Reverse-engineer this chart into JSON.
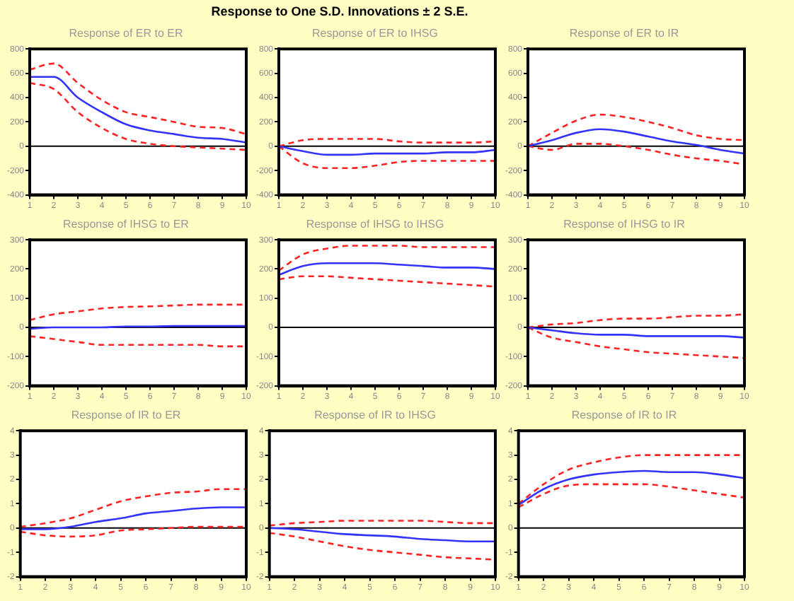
{
  "chart_data": [
    {
      "type": "line",
      "title": "Response of ER to ER",
      "annotations": [
        "Response to One S.D. Innovations ± 2 S.E."
      ],
      "categories": [
        "1",
        "2",
        "3",
        "4",
        "5",
        "6",
        "7",
        "8",
        "9",
        "10"
      ],
      "ylim": [
        -400,
        800
      ],
      "yticks": [
        -400,
        -200,
        0,
        200,
        400,
        600,
        800
      ],
      "ref_lines": [
        {
          "axis": "y",
          "value": 0,
          "color": "#000000"
        }
      ],
      "series": [
        {
          "color": "#3333ff",
          "line_style": "solid",
          "values": [
            570,
            570,
            400,
            280,
            180,
            130,
            100,
            70,
            60,
            30
          ]
        },
        {
          "color": "#ff2222",
          "line_style": "dashed",
          "values": [
            630,
            680,
            520,
            380,
            280,
            240,
            200,
            160,
            150,
            100
          ]
        },
        {
          "color": "#ff2222",
          "line_style": "dashed",
          "values": [
            520,
            470,
            280,
            150,
            60,
            20,
            0,
            -10,
            -20,
            -30
          ]
        }
      ]
    },
    {
      "type": "line",
      "title": "Response of ER to IHSG",
      "categories": [
        "1",
        "2",
        "3",
        "4",
        "5",
        "6",
        "7",
        "8",
        "9",
        "10"
      ],
      "ylim": [
        -400,
        800
      ],
      "yticks": [
        -400,
        -200,
        0,
        200,
        400,
        600,
        800
      ],
      "ref_lines": [
        {
          "axis": "y",
          "value": 0,
          "color": "#000000"
        }
      ],
      "series": [
        {
          "color": "#3333ff",
          "line_style": "solid",
          "values": [
            0,
            -40,
            -70,
            -70,
            -60,
            -60,
            -60,
            -50,
            -50,
            -30
          ]
        },
        {
          "color": "#ff2222",
          "line_style": "dashed",
          "values": [
            0,
            50,
            60,
            60,
            60,
            40,
            30,
            30,
            30,
            40
          ]
        },
        {
          "color": "#ff2222",
          "line_style": "dashed",
          "values": [
            0,
            -140,
            -180,
            -180,
            -160,
            -130,
            -120,
            -120,
            -120,
            -120
          ]
        }
      ]
    },
    {
      "type": "line",
      "title": "Response of ER to IR",
      "categories": [
        "1",
        "2",
        "3",
        "4",
        "5",
        "6",
        "7",
        "8",
        "9",
        "10"
      ],
      "ylim": [
        -400,
        800
      ],
      "yticks": [
        -400,
        -200,
        0,
        200,
        400,
        600,
        800
      ],
      "ref_lines": [
        {
          "axis": "y",
          "value": 0,
          "color": "#000000"
        }
      ],
      "series": [
        {
          "color": "#3333ff",
          "line_style": "solid",
          "values": [
            0,
            50,
            110,
            140,
            120,
            80,
            40,
            10,
            -30,
            -60
          ]
        },
        {
          "color": "#ff2222",
          "line_style": "dashed",
          "values": [
            0,
            110,
            210,
            260,
            240,
            200,
            150,
            90,
            60,
            50
          ]
        },
        {
          "color": "#ff2222",
          "line_style": "dashed",
          "values": [
            0,
            -30,
            20,
            20,
            0,
            -30,
            -70,
            -100,
            -120,
            -150
          ]
        }
      ]
    },
    {
      "type": "line",
      "title": "Response of IHSG to ER",
      "categories": [
        "1",
        "2",
        "3",
        "4",
        "5",
        "6",
        "7",
        "8",
        "9",
        "10"
      ],
      "ylim": [
        -200,
        300
      ],
      "yticks": [
        -200,
        -100,
        0,
        100,
        200,
        300
      ],
      "ref_lines": [
        {
          "axis": "y",
          "value": 0,
          "color": "#000000"
        }
      ],
      "series": [
        {
          "color": "#3333ff",
          "line_style": "solid",
          "values": [
            -5,
            0,
            0,
            0,
            3,
            3,
            5,
            5,
            5,
            5
          ]
        },
        {
          "color": "#ff2222",
          "line_style": "dashed",
          "values": [
            25,
            45,
            55,
            65,
            70,
            72,
            75,
            78,
            78,
            78
          ]
        },
        {
          "color": "#ff2222",
          "line_style": "dashed",
          "values": [
            -30,
            -40,
            -50,
            -60,
            -60,
            -60,
            -60,
            -60,
            -65,
            -65
          ]
        }
      ]
    },
    {
      "type": "line",
      "title": "Response of IHSG to IHSG",
      "categories": [
        "1",
        "2",
        "3",
        "4",
        "5",
        "6",
        "7",
        "8",
        "9",
        "10"
      ],
      "ylim": [
        -200,
        300
      ],
      "yticks": [
        -200,
        -100,
        0,
        100,
        200,
        300
      ],
      "ref_lines": [
        {
          "axis": "y",
          "value": 0,
          "color": "#000000"
        }
      ],
      "series": [
        {
          "color": "#3333ff",
          "line_style": "solid",
          "values": [
            180,
            210,
            220,
            220,
            220,
            215,
            210,
            205,
            205,
            200
          ]
        },
        {
          "color": "#ff2222",
          "line_style": "dashed",
          "values": [
            195,
            250,
            270,
            280,
            280,
            280,
            275,
            275,
            275,
            275
          ]
        },
        {
          "color": "#ff2222",
          "line_style": "dashed",
          "values": [
            165,
            175,
            175,
            170,
            165,
            160,
            155,
            150,
            145,
            140
          ]
        }
      ]
    },
    {
      "type": "line",
      "title": "Response of IHSG to IR",
      "categories": [
        "1",
        "2",
        "3",
        "4",
        "5",
        "6",
        "7",
        "8",
        "9",
        "10"
      ],
      "ylim": [
        -200,
        300
      ],
      "yticks": [
        -200,
        -100,
        0,
        100,
        200,
        300
      ],
      "ref_lines": [
        {
          "axis": "y",
          "value": 0,
          "color": "#000000"
        }
      ],
      "series": [
        {
          "color": "#3333ff",
          "line_style": "solid",
          "values": [
            0,
            -10,
            -20,
            -25,
            -25,
            -30,
            -30,
            -30,
            -30,
            -35
          ]
        },
        {
          "color": "#ff2222",
          "line_style": "dashed",
          "values": [
            0,
            10,
            15,
            25,
            30,
            30,
            35,
            40,
            40,
            45
          ]
        },
        {
          "color": "#ff2222",
          "line_style": "dashed",
          "values": [
            0,
            -35,
            -50,
            -65,
            -75,
            -85,
            -90,
            -95,
            -100,
            -105
          ]
        }
      ]
    },
    {
      "type": "line",
      "title": "Response of IR to ER",
      "categories": [
        "1",
        "2",
        "3",
        "4",
        "5",
        "6",
        "7",
        "8",
        "9",
        "10"
      ],
      "ylim": [
        -2,
        4
      ],
      "yticks": [
        -2,
        -1,
        0,
        1,
        2,
        3,
        4
      ],
      "ref_lines": [
        {
          "axis": "y",
          "value": 0,
          "color": "#000000"
        }
      ],
      "series": [
        {
          "color": "#3333ff",
          "line_style": "solid",
          "values": [
            -0.05,
            -0.05,
            0.05,
            0.25,
            0.4,
            0.6,
            0.7,
            0.8,
            0.85,
            0.85
          ]
        },
        {
          "color": "#ff2222",
          "line_style": "dashed",
          "values": [
            0.05,
            0.2,
            0.4,
            0.75,
            1.1,
            1.3,
            1.45,
            1.5,
            1.6,
            1.6
          ]
        },
        {
          "color": "#ff2222",
          "line_style": "dashed",
          "values": [
            -0.15,
            -0.3,
            -0.35,
            -0.3,
            -0.1,
            -0.05,
            0,
            0.05,
            0.05,
            0.05
          ]
        }
      ]
    },
    {
      "type": "line",
      "title": "Response of IR to IHSG",
      "categories": [
        "1",
        "2",
        "3",
        "4",
        "5",
        "6",
        "7",
        "8",
        "9",
        "10"
      ],
      "ylim": [
        -2,
        4
      ],
      "yticks": [
        -2,
        -1,
        0,
        1,
        2,
        3,
        4
      ],
      "ref_lines": [
        {
          "axis": "y",
          "value": 0,
          "color": "#000000"
        }
      ],
      "series": [
        {
          "color": "#3333ff",
          "line_style": "solid",
          "values": [
            0,
            -0.05,
            -0.15,
            -0.25,
            -0.3,
            -0.35,
            -0.45,
            -0.5,
            -0.55,
            -0.55
          ]
        },
        {
          "color": "#ff2222",
          "line_style": "dashed",
          "values": [
            0.1,
            0.2,
            0.25,
            0.3,
            0.3,
            0.3,
            0.3,
            0.25,
            0.2,
            0.2
          ]
        },
        {
          "color": "#ff2222",
          "line_style": "dashed",
          "values": [
            -0.2,
            -0.35,
            -0.55,
            -0.75,
            -0.9,
            -1.0,
            -1.1,
            -1.2,
            -1.25,
            -1.3
          ]
        }
      ]
    },
    {
      "type": "line",
      "title": "Response of IR to IR",
      "categories": [
        "1",
        "2",
        "3",
        "4",
        "5",
        "6",
        "7",
        "8",
        "9",
        "10"
      ],
      "ylim": [
        -2,
        4
      ],
      "yticks": [
        -2,
        -1,
        0,
        1,
        2,
        3,
        4
      ],
      "ref_lines": [
        {
          "axis": "y",
          "value": 0,
          "color": "#000000"
        }
      ],
      "series": [
        {
          "color": "#3333ff",
          "line_style": "solid",
          "values": [
            0.95,
            1.6,
            2.0,
            2.2,
            2.3,
            2.35,
            2.3,
            2.3,
            2.2,
            2.05
          ]
        },
        {
          "color": "#ff2222",
          "line_style": "dashed",
          "values": [
            1.0,
            1.8,
            2.4,
            2.7,
            2.9,
            3.0,
            3.0,
            3.0,
            3.0,
            3.0
          ]
        },
        {
          "color": "#ff2222",
          "line_style": "dashed",
          "values": [
            0.85,
            1.4,
            1.75,
            1.8,
            1.8,
            1.8,
            1.7,
            1.55,
            1.4,
            1.25
          ]
        }
      ]
    }
  ]
}
